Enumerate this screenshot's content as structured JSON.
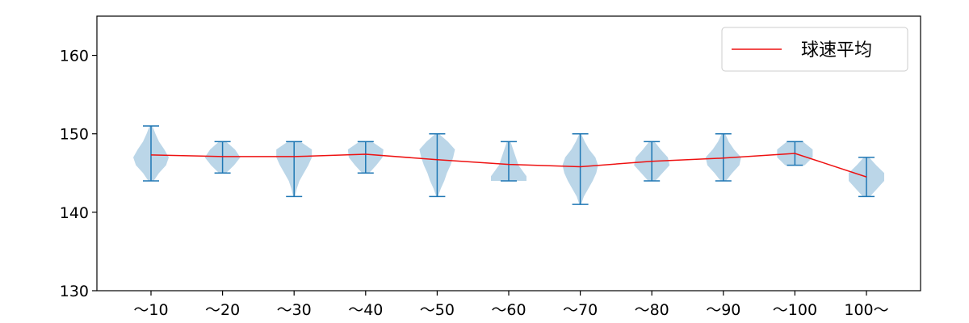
{
  "chart_data": {
    "type": "violin",
    "categories": [
      "～10",
      "～20",
      "～30",
      "～40",
      "～50",
      "～60",
      "～70",
      "～80",
      "～90",
      "～100",
      "100～"
    ],
    "ylim": [
      130,
      165
    ],
    "yticks": [
      130,
      140,
      150,
      160
    ],
    "xlabel": "",
    "ylabel": "",
    "grid": false,
    "legend_position": "top-right",
    "series": [
      {
        "name": "球速平均",
        "type": "line",
        "color": "#ee1111",
        "values": [
          147.3,
          147.1,
          147.1,
          147.4,
          146.7,
          146.1,
          145.8,
          146.5,
          146.9,
          147.5,
          144.5
        ]
      }
    ],
    "distributions": [
      {
        "min": 144,
        "max": 151,
        "mode": 147,
        "shape": [
          [
            144,
            0.15
          ],
          [
            145,
            0.45
          ],
          [
            146,
            0.85
          ],
          [
            147,
            1.0
          ],
          [
            148,
            0.75
          ],
          [
            149,
            0.45
          ],
          [
            150,
            0.25
          ],
          [
            151,
            0.08
          ]
        ]
      },
      {
        "min": 145,
        "max": 149,
        "mode": 147,
        "shape": [
          [
            145,
            0.2
          ],
          [
            146,
            0.65
          ],
          [
            147,
            1.0
          ],
          [
            148,
            0.7
          ],
          [
            149,
            0.2
          ]
        ]
      },
      {
        "min": 142,
        "max": 149,
        "mode": 148,
        "shape": [
          [
            142,
            0.05
          ],
          [
            143,
            0.15
          ],
          [
            144,
            0.3
          ],
          [
            145,
            0.55
          ],
          [
            146,
            0.8
          ],
          [
            147,
            1.0
          ],
          [
            148,
            1.0
          ],
          [
            149,
            0.35
          ]
        ]
      },
      {
        "min": 145,
        "max": 149,
        "mode": 147.5,
        "shape": [
          [
            145,
            0.2
          ],
          [
            146,
            0.6
          ],
          [
            147,
            0.95
          ],
          [
            148,
            1.0
          ],
          [
            149,
            0.35
          ]
        ]
      },
      {
        "min": 142,
        "max": 150,
        "mode": 148,
        "shape": [
          [
            142,
            0.05
          ],
          [
            143,
            0.2
          ],
          [
            144,
            0.4
          ],
          [
            145,
            0.55
          ],
          [
            146,
            0.75
          ],
          [
            147,
            0.9
          ],
          [
            148,
            1.0
          ],
          [
            149,
            0.6
          ],
          [
            150,
            0.1
          ]
        ]
      },
      {
        "min": 144,
        "max": 149,
        "mode": 145,
        "shape": [
          [
            144,
            1.0
          ],
          [
            144.6,
            1.0
          ],
          [
            145.2,
            0.8
          ],
          [
            146,
            0.55
          ],
          [
            147,
            0.4
          ],
          [
            148,
            0.25
          ],
          [
            149,
            0.1
          ]
        ]
      },
      {
        "min": 141,
        "max": 150,
        "mode": 146,
        "shape": [
          [
            141,
            0.05
          ],
          [
            142,
            0.2
          ],
          [
            143,
            0.45
          ],
          [
            144,
            0.7
          ],
          [
            145,
            0.9
          ],
          [
            146,
            1.0
          ],
          [
            147,
            0.85
          ],
          [
            148,
            0.5
          ],
          [
            149,
            0.25
          ],
          [
            150,
            0.05
          ]
        ]
      },
      {
        "min": 144,
        "max": 149,
        "mode": 146.5,
        "shape": [
          [
            144,
            0.2
          ],
          [
            145,
            0.6
          ],
          [
            146,
            1.0
          ],
          [
            147,
            0.9
          ],
          [
            148,
            0.5
          ],
          [
            149,
            0.15
          ]
        ]
      },
      {
        "min": 144,
        "max": 150,
        "mode": 147,
        "shape": [
          [
            144,
            0.15
          ],
          [
            145,
            0.5
          ],
          [
            146,
            0.9
          ],
          [
            147,
            1.0
          ],
          [
            148,
            0.6
          ],
          [
            149,
            0.3
          ],
          [
            150,
            0.1
          ]
        ]
      },
      {
        "min": 146,
        "max": 149,
        "mode": 147.5,
        "shape": [
          [
            146,
            0.55
          ],
          [
            147,
            1.0
          ],
          [
            148,
            1.0
          ],
          [
            149,
            0.45
          ]
        ]
      },
      {
        "min": 142,
        "max": 147,
        "mode": 144.5,
        "shape": [
          [
            142,
            0.2
          ],
          [
            143,
            0.6
          ],
          [
            144,
            1.0
          ],
          [
            145,
            1.0
          ],
          [
            146,
            0.55
          ],
          [
            147,
            0.15
          ]
        ]
      }
    ],
    "colors": {
      "violin_fill": "#1f77b4",
      "violin_lines": "#1f77b4",
      "mean_line": "#ee1111"
    }
  }
}
